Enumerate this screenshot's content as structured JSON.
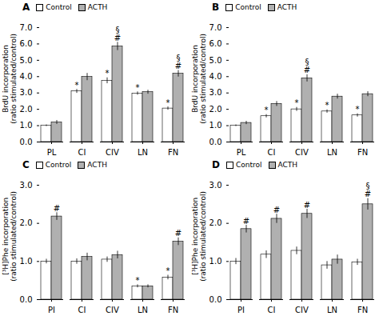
{
  "chart_data": [
    {
      "type": "bar",
      "title": "A",
      "categories": [
        "PL",
        "CI",
        "CIV",
        "LN",
        "FN"
      ],
      "series": [
        {
          "name": "Control",
          "color": "#ffffff",
          "values": [
            1.0,
            3.1,
            3.75,
            2.97,
            2.05
          ],
          "errors": [
            0.05,
            0.12,
            0.18,
            0.1,
            0.1
          ]
        },
        {
          "name": "ACTH",
          "color": "#b0b0b0",
          "values": [
            1.2,
            3.98,
            5.85,
            3.05,
            4.18
          ],
          "errors": [
            0.12,
            0.22,
            0.25,
            0.12,
            0.2
          ]
        }
      ],
      "ylabel": "BrdU incorporation\n(ratio stimulated/control)",
      "ylim": [
        0,
        7
      ],
      "yticks": [
        0,
        1,
        2,
        3,
        4,
        5,
        6,
        7
      ],
      "annotations": [
        {
          "category": "CI",
          "series": "Control",
          "text": "*"
        },
        {
          "category": "CIV",
          "series": "Control",
          "text": "*"
        },
        {
          "category": "LN",
          "series": "Control",
          "text": "*"
        },
        {
          "category": "FN",
          "series": "Control",
          "text": "*"
        },
        {
          "category": "CIV",
          "series": "ACTH",
          "text": "#"
        },
        {
          "category": "CIV",
          "series": "ACTH",
          "text": "§"
        },
        {
          "category": "FN",
          "series": "ACTH",
          "text": "#"
        },
        {
          "category": "FN",
          "series": "ACTH",
          "text": "§"
        }
      ],
      "legend": "upper left",
      "grid": false
    },
    {
      "type": "bar",
      "title": "B",
      "categories": [
        "PL",
        "CI",
        "CIV",
        "LN",
        "FN"
      ],
      "series": [
        {
          "name": "Control",
          "color": "#ffffff",
          "values": [
            1.0,
            1.58,
            2.0,
            1.87,
            1.63
          ],
          "errors": [
            0.05,
            0.1,
            0.12,
            0.1,
            0.1
          ]
        },
        {
          "name": "ACTH",
          "color": "#b0b0b0",
          "values": [
            1.17,
            2.33,
            3.9,
            2.78,
            2.93
          ],
          "errors": [
            0.1,
            0.15,
            0.22,
            0.15,
            0.15
          ]
        }
      ],
      "ylabel": "BrdU incorporation\n(ratio stimulated/control)",
      "ylim": [
        0,
        7
      ],
      "yticks": [
        0,
        1,
        2,
        3,
        4,
        5,
        6,
        7
      ],
      "annotations": [
        {
          "category": "CI",
          "series": "Control",
          "text": "*"
        },
        {
          "category": "CIV",
          "series": "Control",
          "text": "*"
        },
        {
          "category": "LN",
          "series": "Control",
          "text": "*"
        },
        {
          "category": "FN",
          "series": "Control",
          "text": "*"
        },
        {
          "category": "CIV",
          "series": "ACTH",
          "text": "#"
        },
        {
          "category": "CIV",
          "series": "ACTH",
          "text": "§"
        }
      ],
      "legend": "upper left",
      "grid": false
    },
    {
      "type": "bar",
      "title": "C",
      "categories": [
        "PI",
        "CI",
        "CIV",
        "LN",
        "FN"
      ],
      "series": [
        {
          "name": "Control",
          "color": "#ffffff",
          "values": [
            1.0,
            1.0,
            1.05,
            0.35,
            0.58
          ],
          "errors": [
            0.06,
            0.07,
            0.07,
            0.04,
            0.06
          ]
        },
        {
          "name": "ACTH",
          "color": "#b0b0b0",
          "values": [
            2.18,
            1.12,
            1.17,
            0.35,
            1.52
          ],
          "errors": [
            0.1,
            0.1,
            0.1,
            0.04,
            0.1
          ]
        }
      ],
      "ylabel": "[³H]Phe incorporation\n(ratio stimulated/control)",
      "ylim": [
        0,
        3
      ],
      "yticks": [
        0,
        1,
        2,
        3
      ],
      "annotations": [
        {
          "category": "LN",
          "series": "Control",
          "text": "*"
        },
        {
          "category": "FN",
          "series": "Control",
          "text": "*"
        },
        {
          "category": "PI",
          "series": "ACTH",
          "text": "#"
        },
        {
          "category": "FN",
          "series": "ACTH",
          "text": "#"
        }
      ],
      "legend": "upper left",
      "grid": false
    },
    {
      "type": "bar",
      "title": "D",
      "categories": [
        "PI",
        "CI",
        "CIV",
        "LN",
        "FN"
      ],
      "series": [
        {
          "name": "Control",
          "color": "#ffffff",
          "values": [
            1.0,
            1.18,
            1.28,
            0.9,
            0.98
          ],
          "errors": [
            0.08,
            0.1,
            0.1,
            0.1,
            0.08
          ]
        },
        {
          "name": "ACTH",
          "color": "#b0b0b0",
          "values": [
            1.85,
            2.12,
            2.25,
            1.05,
            2.5
          ],
          "errors": [
            0.1,
            0.12,
            0.12,
            0.12,
            0.15
          ]
        }
      ],
      "ylabel": "[³H]Phe incorporation\n(ratio stimulated/control)",
      "ylim": [
        0,
        3
      ],
      "yticks": [
        0,
        1,
        2,
        3
      ],
      "annotations": [
        {
          "category": "PI",
          "series": "ACTH",
          "text": "#"
        },
        {
          "category": "CI",
          "series": "ACTH",
          "text": "#"
        },
        {
          "category": "CIV",
          "series": "ACTH",
          "text": "#"
        },
        {
          "category": "FN",
          "series": "ACTH",
          "text": "#"
        },
        {
          "category": "FN",
          "series": "ACTH",
          "text": "§"
        }
      ],
      "legend": "upper left",
      "grid": false
    }
  ]
}
